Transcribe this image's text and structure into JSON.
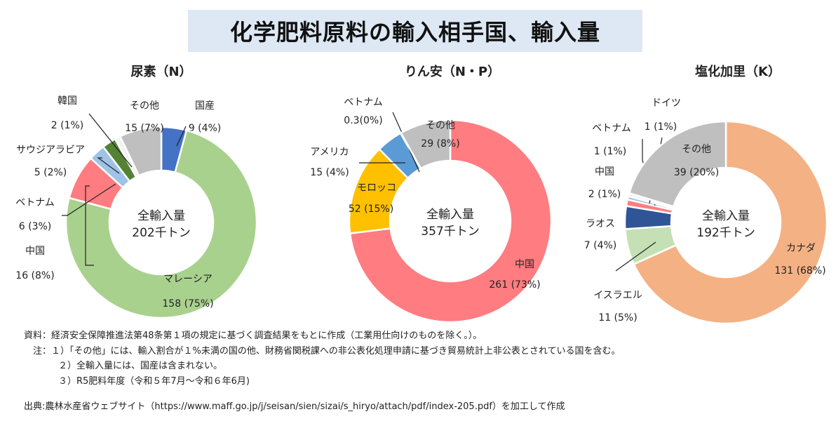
{
  "title": "化学肥料原料の輸入相手国、輸入量",
  "chart_data": [
    {
      "type": "pie",
      "title": "尿素（N）",
      "center_label": [
        "全輸入量",
        "202千トン"
      ],
      "slices": [
        {
          "name": "国産",
          "value": 9,
          "label": "9 (4%)",
          "color": "#4472c4"
        },
        {
          "name": "マレーシア",
          "value": 158,
          "label": "158 (75%)",
          "color": "#a9d18e"
        },
        {
          "name": "中国",
          "value": 16,
          "label": "16 (8%)",
          "color": "#ff7c80"
        },
        {
          "name": "ベトナム",
          "value": 6,
          "label": "6 (3%)",
          "color": "#9dc3e6"
        },
        {
          "name": "サウジアラビア",
          "value": 5,
          "label": "5 (2%)",
          "color": "#548235"
        },
        {
          "name": "韓国",
          "value": 2,
          "label": "2 (1%)",
          "color": "#f2f2f2"
        },
        {
          "name": "その他",
          "value": 15,
          "label": "15 (7%)",
          "color": "#bfbfbf"
        }
      ]
    },
    {
      "type": "pie",
      "title": "りん安（N・P）",
      "center_label": [
        "全輸入量",
        "357千トン"
      ],
      "slices": [
        {
          "name": "中国",
          "value": 261,
          "label": "261 (73%)",
          "color": "#ff7c80"
        },
        {
          "name": "モロッコ",
          "value": 52,
          "label": "52 (15%)",
          "color": "#ffc000"
        },
        {
          "name": "アメリカ",
          "value": 15,
          "label": "15 (4%)",
          "color": "#5b9bd5"
        },
        {
          "name": "ベトナム",
          "value": 0.3,
          "label": "0.3(0%)",
          "color": "#d9d9d9"
        },
        {
          "name": "その他",
          "value": 29,
          "label": "29 (8%)",
          "color": "#bfbfbf"
        }
      ]
    },
    {
      "type": "pie",
      "title": "塩化加里（K）",
      "center_label": [
        "全輸入量",
        "192千トン"
      ],
      "slices": [
        {
          "name": "カナダ",
          "value": 131,
          "label": "131 (68%)",
          "color": "#f4b183"
        },
        {
          "name": "イスラエル",
          "value": 11,
          "label": "11 (5%)",
          "color": "#c5e0b4"
        },
        {
          "name": "ラオス",
          "value": 7,
          "label": "7 (4%)",
          "color": "#2f5597"
        },
        {
          "name": "中国",
          "value": 2,
          "label": "2 (1%)",
          "color": "#ff7c80"
        },
        {
          "name": "ベトナム",
          "value": 1,
          "label": "1 (1%)",
          "color": "#9dc3e6"
        },
        {
          "name": "ドイツ",
          "value": 1,
          "label": "1 (1%)",
          "color": "#f2f2f2"
        },
        {
          "name": "その他",
          "value": 39,
          "label": "39 (20%)",
          "color": "#bfbfbf"
        }
      ]
    }
  ],
  "notes": {
    "source_note": "資料：経済安全保障推進法第48条第１項の規定に基づく調査結果をもとに作成（工業用仕向けのものを除く。）。",
    "note1": "注：１）「その他」には、輸入割合が１%未満の国の他、財務省関税課への非公表化処理申請に基づき貿易統計上非公表とされている国を含む。",
    "note2": "２）全輸入量には、国産は含まれない。",
    "note3": "３）R5肥料年度（令和５年7月～令和６年6月)"
  },
  "source": "出典:農林水産省ウェブサイト（https://www.maff.go.jp/j/seisan/sien/sizai/s_hiryo/attach/pdf/index-205.pdf）を加工して作成"
}
